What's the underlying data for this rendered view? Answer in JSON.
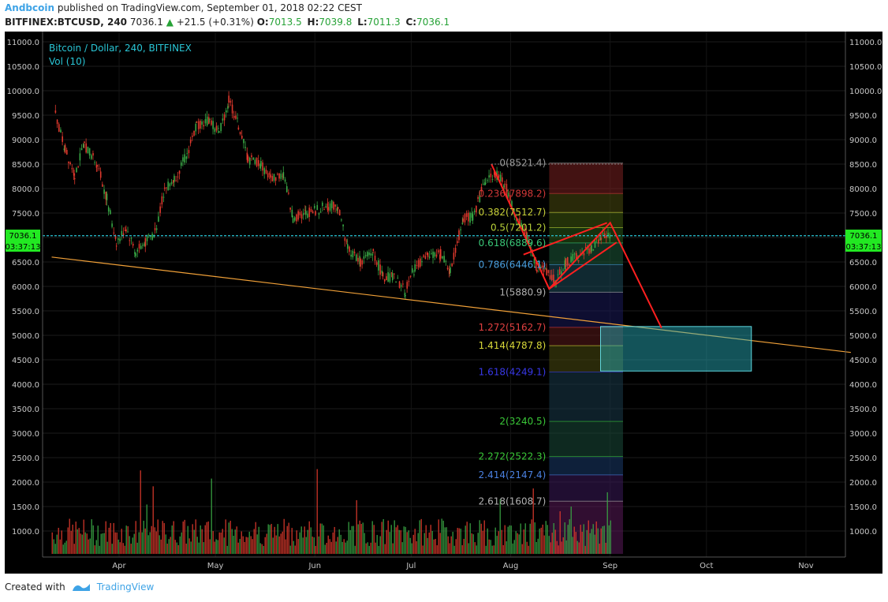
{
  "header": {
    "author": "Andbcoin",
    "published_text": "published on TradingView.com, September 01, 2018 02:22 CEST"
  },
  "quote": {
    "symbol": "BITFINEX:BTCUSD, 240",
    "last": "7036.1",
    "change": "+21.5 (+0.31%)",
    "open_label": "O:",
    "open": "7013.5",
    "high_label": "H:",
    "high": "7039.8",
    "low_label": "L:",
    "low": "7011.3",
    "close_label": "C:",
    "close": "7036.1"
  },
  "legend": {
    "title": "Bitcoin / Dollar, 240, BITFINEX",
    "volume": "Vol (10)"
  },
  "price_tag": {
    "price": "7036.1",
    "countdown": "03:37:13"
  },
  "colors": {
    "background": "#000000",
    "up": "#39a845",
    "down": "#e0392d",
    "trendline": "#f0a038",
    "price_line": "#2ac6d6",
    "pattern": "#ff2020",
    "target_box": "#2ab8c6",
    "axis_text": "#c8c8c8",
    "tag_bg": "#22e822"
  },
  "chart_data": {
    "type": "candlestick",
    "ylim": [
      0,
      11200
    ],
    "y_ticks": [
      "11000.0",
      "10500.0",
      "10000.0",
      "9500.0",
      "9000.0",
      "8500.0",
      "8000.0",
      "7500.0",
      "7000.0",
      "6500.0",
      "6000.0",
      "5500.0",
      "5000.0",
      "4500.0",
      "4000.0",
      "3500.0",
      "3000.0",
      "2500.0",
      "2000.0",
      "1500.0",
      "1000.0"
    ],
    "x_ticks": [
      "Apr",
      "May",
      "Jun",
      "Jul",
      "Aug",
      "Sep",
      "Oct",
      "Nov"
    ],
    "price_series": [
      [
        "2018-03-12",
        9500
      ],
      [
        "2018-03-15",
        8800
      ],
      [
        "2018-03-18",
        8300
      ],
      [
        "2018-03-21",
        8900
      ],
      [
        "2018-03-25",
        8500
      ],
      [
        "2018-03-28",
        7800
      ],
      [
        "2018-03-31",
        6900
      ],
      [
        "2018-04-03",
        7200
      ],
      [
        "2018-04-06",
        6700
      ],
      [
        "2018-04-09",
        6900
      ],
      [
        "2018-04-12",
        7100
      ],
      [
        "2018-04-15",
        8000
      ],
      [
        "2018-04-18",
        8200
      ],
      [
        "2018-04-22",
        8700
      ],
      [
        "2018-04-25",
        9300
      ],
      [
        "2018-04-29",
        9400
      ],
      [
        "2018-05-02",
        9150
      ],
      [
        "2018-05-05",
        9800
      ],
      [
        "2018-05-08",
        9300
      ],
      [
        "2018-05-11",
        8600
      ],
      [
        "2018-05-15",
        8500
      ],
      [
        "2018-05-18",
        8200
      ],
      [
        "2018-05-22",
        8300
      ],
      [
        "2018-05-25",
        7400
      ],
      [
        "2018-05-29",
        7500
      ],
      [
        "2018-06-01",
        7550
      ],
      [
        "2018-06-05",
        7650
      ],
      [
        "2018-06-08",
        7650
      ],
      [
        "2018-06-11",
        6800
      ],
      [
        "2018-06-15",
        6500
      ],
      [
        "2018-06-19",
        6700
      ],
      [
        "2018-06-22",
        6200
      ],
      [
        "2018-06-25",
        6200
      ],
      [
        "2018-06-29",
        5900
      ],
      [
        "2018-07-02",
        6400
      ],
      [
        "2018-07-06",
        6600
      ],
      [
        "2018-07-10",
        6650
      ],
      [
        "2018-07-13",
        6300
      ],
      [
        "2018-07-17",
        7400
      ],
      [
        "2018-07-20",
        7400
      ],
      [
        "2018-07-24",
        8200
      ],
      [
        "2018-07-27",
        8300
      ],
      [
        "2018-07-30",
        8100
      ],
      [
        "2018-08-02",
        7500
      ],
      [
        "2018-08-06",
        7000
      ],
      [
        "2018-08-09",
        6400
      ],
      [
        "2018-08-12",
        6300
      ],
      [
        "2018-08-15",
        6100
      ],
      [
        "2018-08-18",
        6500
      ],
      [
        "2018-08-22",
        6600
      ],
      [
        "2018-08-26",
        6800
      ],
      [
        "2018-08-29",
        7000
      ],
      [
        "2018-09-01",
        7036.1
      ]
    ],
    "fibonacci": [
      {
        "label": "0(8521.4)",
        "ratio": "0",
        "value": 8521.4
      },
      {
        "label": "0.236(7898.2)",
        "ratio": "0.236",
        "value": 7898.2
      },
      {
        "label": "0.382(7512.7)",
        "ratio": "0.382",
        "value": 7512.7
      },
      {
        "label": "0.5(7201.2)",
        "ratio": "0.5",
        "value": 7201.2
      },
      {
        "label": "0.618(6889.6)",
        "ratio": "0.618",
        "value": 6889.6
      },
      {
        "label": "0.786(6446.1)",
        "ratio": "0.786",
        "value": 6446.1
      },
      {
        "label": "1(5880.9)",
        "ratio": "1",
        "value": 5880.9
      },
      {
        "label": "1.272(5162.7)",
        "ratio": "1.272",
        "value": 5162.7
      },
      {
        "label": "1.414(4787.8)",
        "ratio": "1.414",
        "value": 4787.8
      },
      {
        "label": "1.618(4249.1)",
        "ratio": "1.618",
        "value": 4249.1
      },
      {
        "label": "2(3240.5)",
        "ratio": "2",
        "value": 3240.5
      },
      {
        "label": "2.272(2522.3)",
        "ratio": "2.272",
        "value": 2522.3
      },
      {
        "label": "2.414(2147.4)",
        "ratio": "2.414",
        "value": 2147.4
      },
      {
        "label": "2.618(1608.7)",
        "ratio": "2.618",
        "value": 1608.7
      }
    ],
    "trendline": [
      [
        "2018-03-11",
        6600
      ],
      [
        "2018-11-15",
        4650
      ]
    ],
    "pattern_path": [
      [
        "2018-07-26",
        8500
      ],
      [
        "2018-08-13",
        5950
      ],
      [
        "2018-09-01",
        7300
      ],
      [
        "2018-09-17",
        5150
      ]
    ],
    "flag_upper": [
      [
        "2018-08-05",
        6650
      ],
      [
        "2018-08-31",
        7300
      ]
    ],
    "flag_lower": [
      [
        "2018-08-13",
        5950
      ],
      [
        "2018-09-03",
        6900
      ]
    ],
    "target_box": {
      "from": "2018-08-29",
      "to": "2018-10-15",
      "high": 5180,
      "low": 4270
    }
  }
}
